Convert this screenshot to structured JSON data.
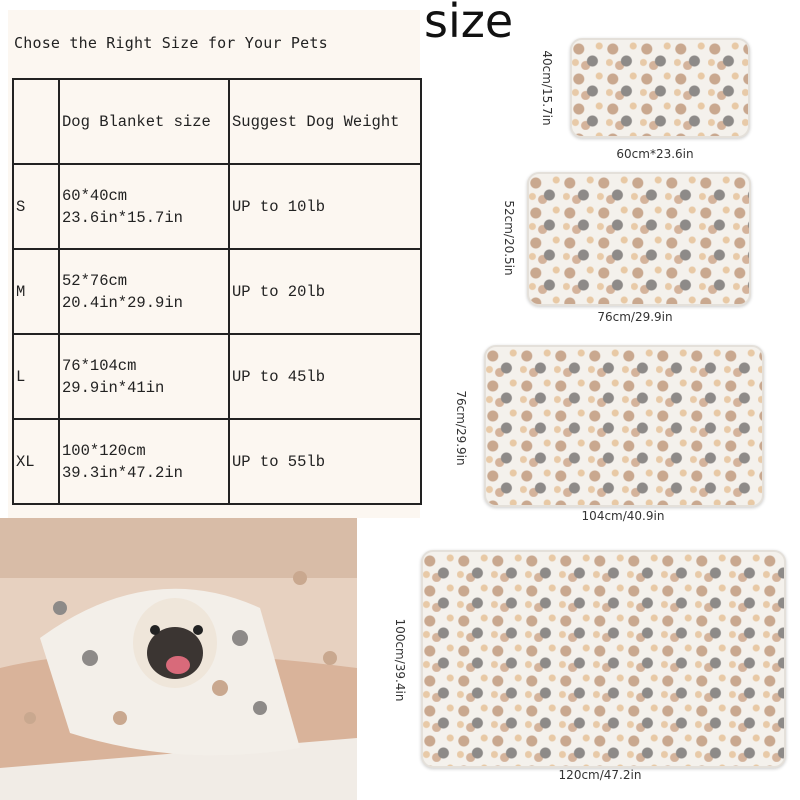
{
  "header": {
    "title": "Chose the Right Size for Your Pets",
    "size_word": "size"
  },
  "table": {
    "columns": [
      "",
      "Dog Blanket size",
      "Suggest Dog Weight"
    ],
    "rows": [
      {
        "size": "S",
        "cm": "60*40cm",
        "in": "23.6in*15.7in",
        "weight": "UP to 10lb"
      },
      {
        "size": "M",
        "cm": "52*76cm",
        "in": "20.4in*29.9in",
        "weight": "UP to 20lb"
      },
      {
        "size": "L",
        "cm": "76*104cm",
        "in": "29.9in*41in",
        "weight": "UP to 45lb"
      },
      {
        "size": "XL",
        "cm": "100*120cm",
        "in": "39.3in*47.2in",
        "weight": "UP to 55lb"
      }
    ]
  },
  "blankets": [
    {
      "width_label": "60cm*23.6in",
      "height_label": "40cm/15.7in"
    },
    {
      "width_label": "76cm/29.9in",
      "height_label": "52cm/20.5in"
    },
    {
      "width_label": "104cm/40.9in",
      "height_label": "76cm/29.9in"
    },
    {
      "width_label": "120cm/47.2in",
      "height_label": "100cm/39.4in"
    }
  ],
  "colors": {
    "paw_brown": "#c9a88f",
    "paw_gray": "#8d8a88",
    "blanket": "#f4f1ec",
    "panel": "#fcf7f1"
  }
}
